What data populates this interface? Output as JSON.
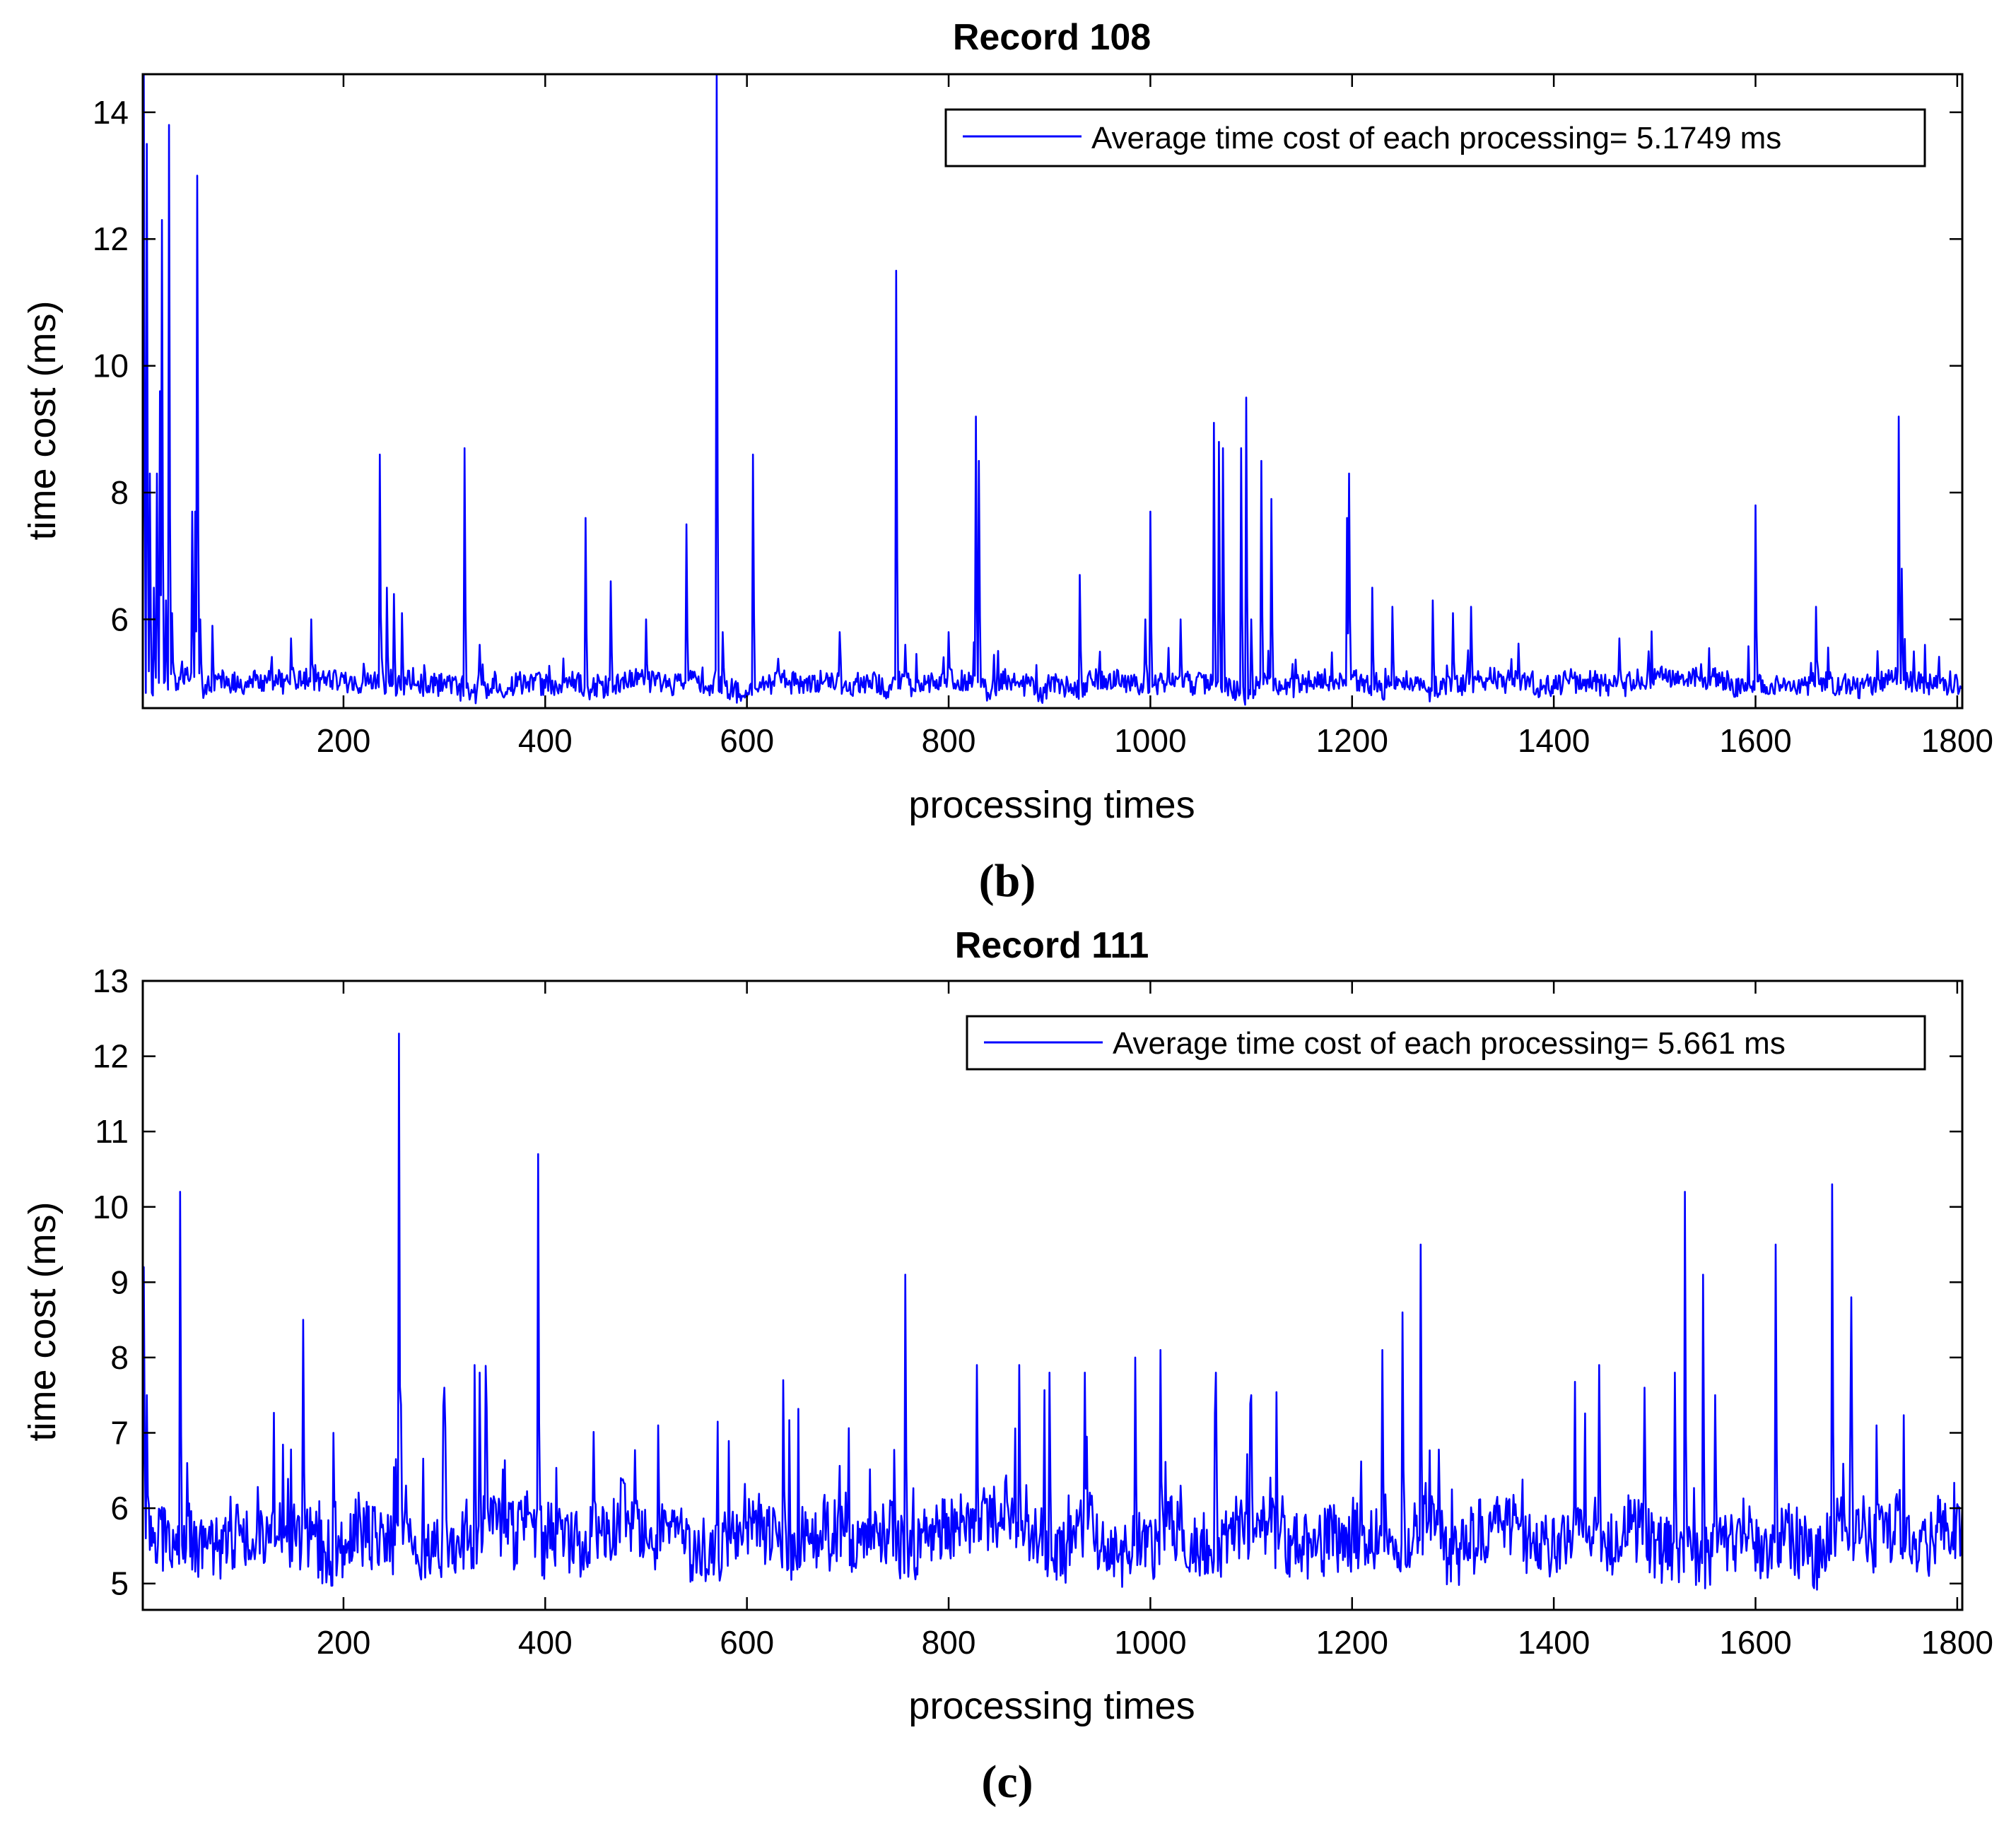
{
  "chart_data": [
    {
      "type": "line",
      "panel_label": "(b)",
      "title": "Record 108",
      "xlabel": "processing times",
      "ylabel": "time cost (ms)",
      "xlim": [
        1,
        1805
      ],
      "ylim": [
        4.6,
        14.6
      ],
      "xticks": [
        200,
        400,
        600,
        800,
        1000,
        1200,
        1400,
        1600,
        1800
      ],
      "yticks": [
        6,
        8,
        10,
        12,
        14
      ],
      "legend": "Average time cost of each processing= 5.1749 ms",
      "legend_position": "top-right",
      "line_color": "#0000ff",
      "baseline": {
        "level": 5.0,
        "noise": 0.22
      },
      "n_points": 1805,
      "peaks": [
        [
          2,
          14.6
        ],
        [
          5,
          13.5
        ],
        [
          8,
          8.3
        ],
        [
          12,
          6.5
        ],
        [
          15,
          8.3
        ],
        [
          18,
          9.6
        ],
        [
          20,
          12.3
        ],
        [
          24,
          6.3
        ],
        [
          27,
          13.8
        ],
        [
          30,
          6.1
        ],
        [
          50,
          7.7
        ],
        [
          53,
          7.7
        ],
        [
          55,
          13.0
        ],
        [
          58,
          6.0
        ],
        [
          70,
          5.9
        ],
        [
          148,
          5.7
        ],
        [
          168,
          6.0
        ],
        [
          236,
          8.6
        ],
        [
          243,
          6.5
        ],
        [
          250,
          6.4
        ],
        [
          258,
          6.1
        ],
        [
          320,
          8.7
        ],
        [
          335,
          5.6
        ],
        [
          440,
          7.6
        ],
        [
          465,
          6.6
        ],
        [
          500,
          6.0
        ],
        [
          540,
          7.5
        ],
        [
          570,
          14.6
        ],
        [
          576,
          5.8
        ],
        [
          606,
          8.6
        ],
        [
          692,
          5.8
        ],
        [
          748,
          11.5
        ],
        [
          757,
          5.6
        ],
        [
          800,
          5.8
        ],
        [
          827,
          9.2
        ],
        [
          830,
          8.5
        ],
        [
          930,
          6.7
        ],
        [
          995,
          6.0
        ],
        [
          1000,
          7.7
        ],
        [
          1030,
          6.0
        ],
        [
          1063,
          9.1
        ],
        [
          1068,
          8.8
        ],
        [
          1072,
          8.7
        ],
        [
          1090,
          8.7
        ],
        [
          1095,
          9.5
        ],
        [
          1100,
          6.0
        ],
        [
          1110,
          8.5
        ],
        [
          1120,
          7.9
        ],
        [
          1195,
          7.6
        ],
        [
          1197,
          8.3
        ],
        [
          1220,
          6.5
        ],
        [
          1240,
          6.2
        ],
        [
          1280,
          6.3
        ],
        [
          1300,
          6.1
        ],
        [
          1318,
          6.2
        ],
        [
          1465,
          5.7
        ],
        [
          1600,
          7.8
        ],
        [
          1660,
          6.2
        ],
        [
          1742,
          9.2
        ],
        [
          1745,
          6.8
        ]
      ]
    },
    {
      "type": "line",
      "panel_label": "(c)",
      "title": "Record 111",
      "xlabel": "processing times",
      "ylabel": "time cost (ms)",
      "xlim": [
        1,
        1805
      ],
      "ylim": [
        4.65,
        13
      ],
      "xticks": [
        200,
        400,
        600,
        800,
        1000,
        1200,
        1400,
        1600,
        1800
      ],
      "yticks": [
        5,
        6,
        7,
        8,
        9,
        10,
        11,
        12,
        13
      ],
      "legend": "Average time cost of each processing= 5.661 ms",
      "legend_position": "top-right",
      "line_color": "#0000ff",
      "baseline": {
        "level": 5.6,
        "noise": 0.55
      },
      "n_points": 1805,
      "peaks": [
        [
          2,
          9.2
        ],
        [
          5,
          7.5
        ],
        [
          38,
          10.2
        ],
        [
          45,
          6.6
        ],
        [
          160,
          8.5
        ],
        [
          190,
          7.0
        ],
        [
          255,
          12.3
        ],
        [
          262,
          6.3
        ],
        [
          300,
          7.6
        ],
        [
          330,
          7.9
        ],
        [
          335,
          7.8
        ],
        [
          393,
          10.7
        ],
        [
          475,
          6.4
        ],
        [
          512,
          7.1
        ],
        [
          636,
          7.7
        ],
        [
          757,
          9.1
        ],
        [
          828,
          7.9
        ],
        [
          870,
          7.9
        ],
        [
          900,
          7.8
        ],
        [
          935,
          7.8
        ],
        [
          985,
          8.0
        ],
        [
          1010,
          8.1
        ],
        [
          1065,
          7.8
        ],
        [
          1100,
          7.5
        ],
        [
          1230,
          8.1
        ],
        [
          1250,
          8.6
        ],
        [
          1268,
          9.5
        ],
        [
          1445,
          7.9
        ],
        [
          1490,
          7.6
        ],
        [
          1520,
          7.8
        ],
        [
          1530,
          10.2
        ],
        [
          1548,
          9.1
        ],
        [
          1560,
          7.5
        ],
        [
          1620,
          9.5
        ],
        [
          1676,
          10.3
        ],
        [
          1695,
          8.8
        ],
        [
          1720,
          7.1
        ]
      ]
    }
  ]
}
